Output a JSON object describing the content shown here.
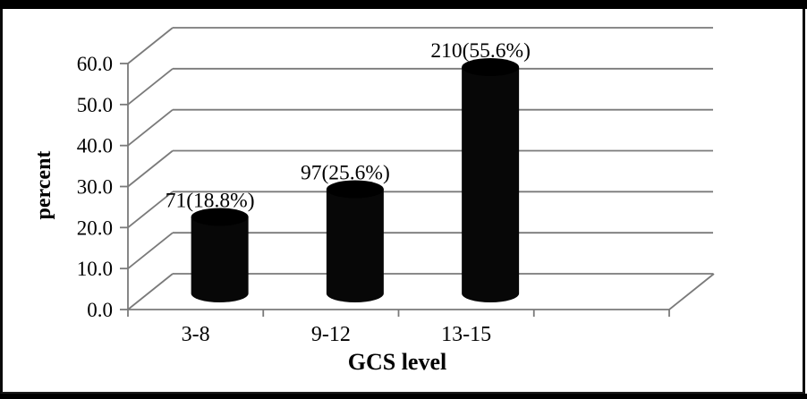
{
  "frame": {
    "background": "#ffffff",
    "border_color": "#000000"
  },
  "chart_data": {
    "type": "bar",
    "subtype": "3d-cylinder",
    "title": "",
    "xlabel": "GCS level",
    "ylabel": "percent",
    "categories": [
      "3-8",
      "9-12",
      "13-15"
    ],
    "values": [
      18.8,
      25.6,
      55.6
    ],
    "counts": [
      71,
      97,
      210
    ],
    "data_labels": [
      "71(18.8%)",
      "97(25.6%)",
      "210(55.6%)"
    ],
    "ytick_labels": [
      "0.0",
      "10.0",
      "20.0",
      "30.0",
      "40.0",
      "50.0",
      "60.0"
    ],
    "ytick_step": 10,
    "ylim": [
      0,
      60
    ],
    "grid": true,
    "legend": false,
    "bar_color": "#070707",
    "gridline_color": "#7a7a7a",
    "text_color": "#000000"
  }
}
